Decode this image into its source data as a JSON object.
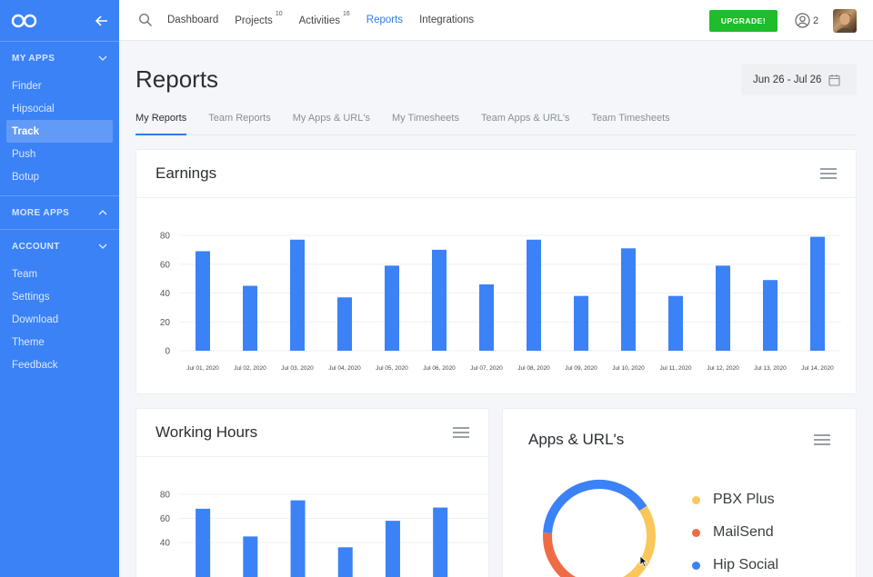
{
  "sidebar": {
    "sections": [
      {
        "title": "MY APPS",
        "items": [
          "Finder",
          "Hipsocial",
          "Track",
          "Push",
          "Botup"
        ],
        "active": "Track"
      },
      {
        "title": "MORE APPS",
        "items": []
      },
      {
        "title": "ACCOUNT",
        "items": [
          "Team",
          "Settings",
          "Download",
          "Theme",
          "Feedback"
        ]
      }
    ]
  },
  "topbar": {
    "nav": [
      {
        "label": "Dashboard",
        "badge": ""
      },
      {
        "label": "Projects",
        "badge": "10"
      },
      {
        "label": "Activities",
        "badge": "16"
      },
      {
        "label": "Reports",
        "badge": "",
        "active": true
      },
      {
        "label": "Integrations",
        "badge": ""
      }
    ],
    "upgrade_label": "UPGRADE!",
    "user_count": "2"
  },
  "page": {
    "title": "Reports",
    "date_range": "Jun 26 - Jul 26",
    "tabs": [
      "My Reports",
      "Team Reports",
      "My Apps & URL's",
      "My Timesheets",
      "Team Apps & URL's",
      "Team Timesheets"
    ],
    "active_tab": "My Reports"
  },
  "cards": {
    "earnings_title": "Earnings",
    "hours_title": "Working Hours",
    "apps_title": "Apps & URL's"
  },
  "colors": {
    "accent": "#3b82f6",
    "upgrade": "#1ebd2b",
    "pbx": "#fbc75a",
    "mailsend": "#ef6b46",
    "hipsocial": "#3b82f6"
  },
  "chart_data": [
    {
      "type": "bar",
      "title": "Earnings",
      "categories": [
        "Jul 01, 2020",
        "Jul 02, 2020",
        "Jul 03, 2020",
        "Jul 04, 2020",
        "Jul 05, 2020",
        "Jul 06, 2020",
        "Jul 07, 2020",
        "Jul 08, 2020",
        "Jul 09, 2020",
        "Jul 10, 2020",
        "Jul 11, 2020",
        "Jul 12, 2020",
        "Jul 13, 2020",
        "Jul 14, 2020"
      ],
      "values": [
        69,
        45,
        77,
        37,
        59,
        70,
        46,
        77,
        38,
        71,
        38,
        59,
        49,
        79
      ],
      "yticks": [
        0,
        20,
        40,
        60,
        80
      ],
      "ylim": [
        0,
        80
      ]
    },
    {
      "type": "bar",
      "title": "Working Hours",
      "values": [
        68,
        45,
        75,
        36,
        58,
        69
      ],
      "yticks": [
        40,
        60,
        80
      ],
      "ylim": [
        0,
        80
      ]
    },
    {
      "type": "pie",
      "title": "Apps & URL's",
      "labels": [
        "PBX Plus",
        "MailSend",
        "Hip Social"
      ],
      "values": [
        40,
        20,
        40
      ]
    }
  ]
}
